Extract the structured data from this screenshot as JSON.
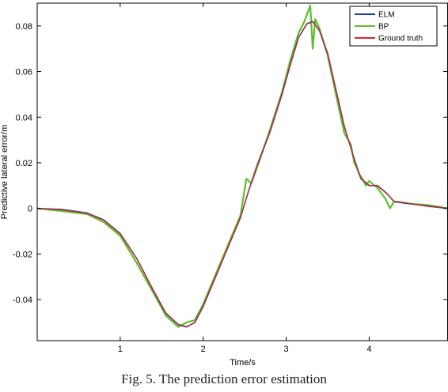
{
  "caption": "Fig. 5. The prediction error estimation",
  "chart_data": {
    "type": "line",
    "title": "",
    "xlabel": "Time/s",
    "ylabel": "Predictive lateral error/m",
    "xlim": [
      0,
      4.95
    ],
    "ylim": [
      -0.058,
      0.09
    ],
    "xticks": [
      1,
      2,
      3,
      4
    ],
    "xtick_labels": [
      "1",
      "2",
      "3",
      "4"
    ],
    "yticks": [
      -0.04,
      -0.02,
      0,
      0.02,
      0.04,
      0.06,
      0.08
    ],
    "ytick_labels": [
      "-0.04",
      "-0.02",
      "0",
      "0.02",
      "0.04",
      "0.06",
      "0.08"
    ],
    "grid": false,
    "legend_position": "top-right",
    "series": [
      {
        "name": "ELM",
        "color": "#1f3f99",
        "x": [
          0,
          0.3,
          0.6,
          0.8,
          1.0,
          1.2,
          1.4,
          1.55,
          1.7,
          1.8,
          1.9,
          2.0,
          2.15,
          2.3,
          2.45,
          2.55,
          2.65,
          2.8,
          2.95,
          3.05,
          3.15,
          3.25,
          3.32,
          3.4,
          3.5,
          3.6,
          3.7,
          3.8,
          3.9,
          4.0,
          4.1,
          4.2,
          4.3,
          4.5,
          4.7,
          4.95
        ],
        "y": [
          0,
          -0.0005,
          -0.002,
          -0.005,
          -0.011,
          -0.022,
          -0.036,
          -0.046,
          -0.051,
          -0.052,
          -0.05,
          -0.043,
          -0.03,
          -0.017,
          -0.004,
          0.008,
          0.019,
          0.033,
          0.05,
          0.063,
          0.075,
          0.081,
          0.082,
          0.078,
          0.068,
          0.052,
          0.036,
          0.024,
          0.013,
          0.01,
          0.01,
          0.007,
          0.003,
          0.002,
          0.001,
          0
        ]
      },
      {
        "name": "BP",
        "color": "#5cbf2a",
        "x": [
          0,
          0.3,
          0.6,
          0.8,
          1.0,
          1.2,
          1.4,
          1.55,
          1.7,
          1.8,
          1.9,
          2.0,
          2.15,
          2.3,
          2.45,
          2.52,
          2.58,
          2.63,
          2.68,
          2.8,
          2.95,
          3.05,
          3.15,
          3.22,
          3.26,
          3.29,
          3.3,
          3.32,
          3.35,
          3.4,
          3.5,
          3.6,
          3.7,
          3.78,
          3.82,
          3.85,
          3.88,
          3.92,
          3.96,
          4.0,
          4.1,
          4.2,
          4.25,
          4.3,
          4.5,
          4.7,
          4.95
        ],
        "y": [
          0,
          -0.0012,
          -0.0025,
          -0.006,
          -0.012,
          -0.024,
          -0.037,
          -0.047,
          -0.052,
          -0.05,
          -0.049,
          -0.042,
          -0.029,
          -0.016,
          -0.003,
          0.013,
          0.011,
          0.016,
          0.021,
          0.034,
          0.051,
          0.065,
          0.077,
          0.082,
          0.086,
          0.089,
          0.083,
          0.07,
          0.083,
          0.079,
          0.067,
          0.05,
          0.033,
          0.028,
          0.02,
          0.018,
          0.015,
          0.013,
          0.01,
          0.012,
          0.009,
          0.004,
          0.0,
          0.003,
          0.002,
          0.0015,
          0
        ]
      },
      {
        "name": "Ground truth",
        "color": "#e0242a",
        "x": [
          0,
          0.3,
          0.6,
          0.8,
          1.0,
          1.2,
          1.4,
          1.55,
          1.7,
          1.8,
          1.9,
          2.0,
          2.15,
          2.3,
          2.45,
          2.55,
          2.65,
          2.8,
          2.95,
          3.05,
          3.15,
          3.25,
          3.32,
          3.4,
          3.5,
          3.6,
          3.7,
          3.8,
          3.9,
          4.0,
          4.1,
          4.2,
          4.3,
          4.5,
          4.7,
          4.95
        ],
        "y": [
          0,
          -0.0007,
          -0.0022,
          -0.0052,
          -0.0112,
          -0.0222,
          -0.0358,
          -0.0458,
          -0.0508,
          -0.0518,
          -0.0502,
          -0.0432,
          -0.0302,
          -0.0168,
          -0.0038,
          0.0078,
          0.0188,
          0.0328,
          0.0498,
          0.0628,
          0.0748,
          0.0808,
          0.0818,
          0.0782,
          0.0682,
          0.0522,
          0.0362,
          0.0242,
          0.0132,
          0.0102,
          0.0098,
          0.0068,
          0.0032,
          0.0021,
          0.0009,
          0
        ]
      }
    ]
  }
}
